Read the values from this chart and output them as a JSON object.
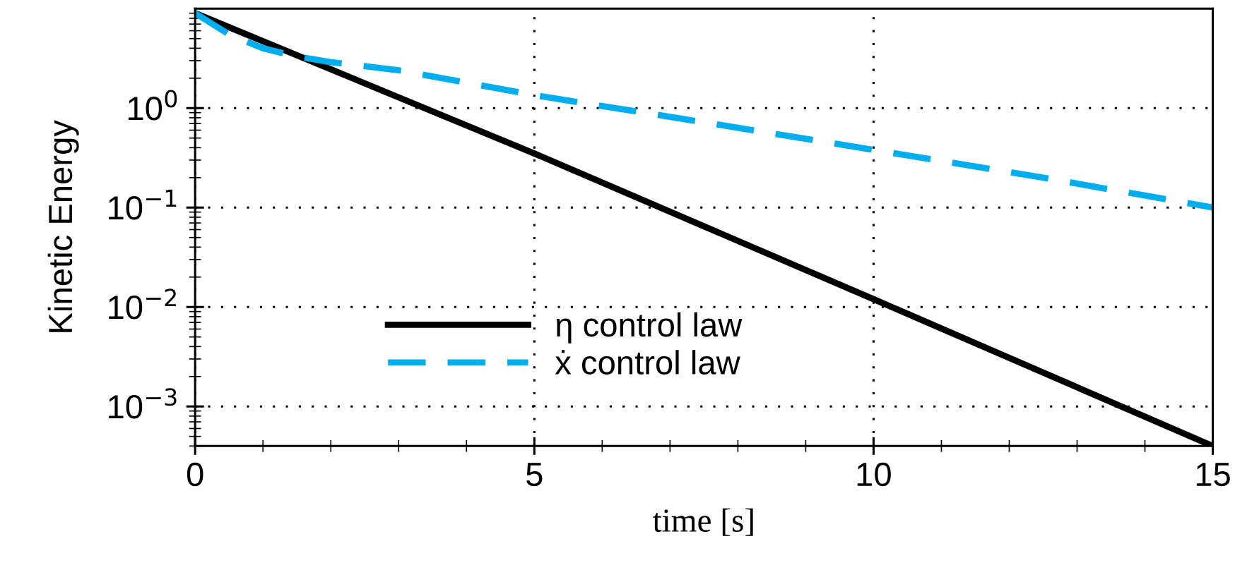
{
  "chart_data": {
    "type": "line",
    "xlabel": "time [s]",
    "ylabel": "Kinetic Energy",
    "log": "y",
    "grid": true,
    "legend": "bottom left",
    "xlim": [
      0,
      15
    ],
    "xticks": [
      0,
      5,
      10,
      15
    ],
    "ylim": [
      0.0004,
      10
    ],
    "yticks": [
      {
        "value": 0.001,
        "label": "10$^{−3}$"
      },
      {
        "value": 0.01,
        "label": "10$^{−2}$"
      },
      {
        "value": 0.1,
        "label": "10$^{−1}$"
      },
      {
        "value": 1,
        "label": "10$^{0}$"
      }
    ],
    "series": [
      {
        "name": "η control law",
        "color": "#000000",
        "line_style": "solid",
        "x": [
          0,
          5,
          10,
          15
        ],
        "values": [
          9,
          0.35,
          0.012,
          0.0004
        ]
      },
      {
        "name": "ẋ control law",
        "color": "#00aeef",
        "line_style": "dashed",
        "x": [
          0,
          0.5,
          1,
          1.5,
          2,
          3,
          5,
          7.5,
          10,
          12.5,
          15
        ],
        "values": [
          9,
          5.5,
          4.0,
          3.3,
          2.9,
          2.4,
          1.35,
          0.72,
          0.38,
          0.2,
          0.1
        ]
      }
    ]
  }
}
